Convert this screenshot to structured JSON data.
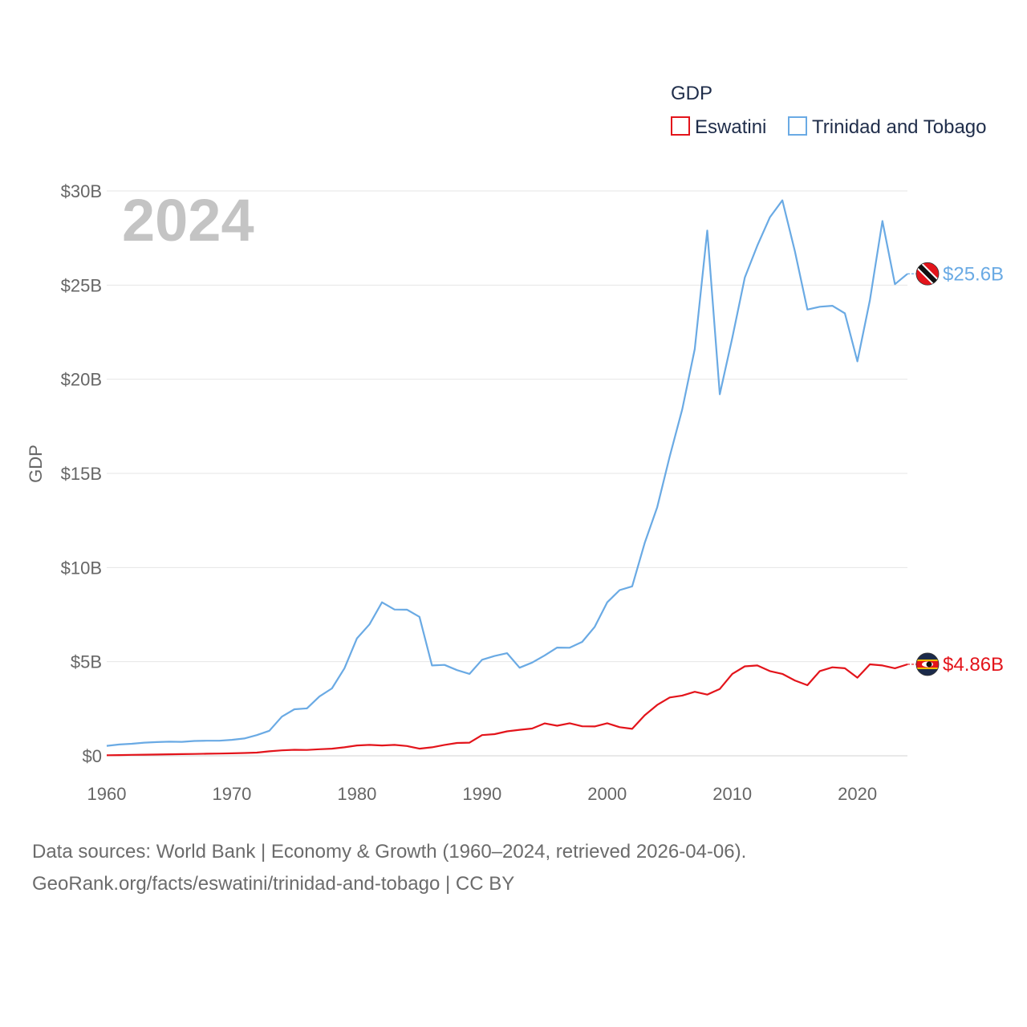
{
  "chart_data": {
    "type": "line",
    "title": "GDP",
    "ylabel": "GDP",
    "xlabel": "",
    "year_watermark": "2024",
    "xlim": [
      1960,
      2024
    ],
    "ylim": [
      0,
      30
    ],
    "x_ticks": [
      1960,
      1970,
      1980,
      1990,
      2000,
      2010,
      2020
    ],
    "y_ticks": [
      {
        "value": 0,
        "label": "$0"
      },
      {
        "value": 5,
        "label": "$5B"
      },
      {
        "value": 10,
        "label": "$10B"
      },
      {
        "value": 15,
        "label": "$15B"
      },
      {
        "value": 20,
        "label": "$20B"
      },
      {
        "value": 25,
        "label": "$25B"
      },
      {
        "value": 30,
        "label": "$30B"
      }
    ],
    "x": [
      1960,
      1961,
      1962,
      1963,
      1964,
      1965,
      1966,
      1967,
      1968,
      1969,
      1970,
      1971,
      1972,
      1973,
      1974,
      1975,
      1976,
      1977,
      1978,
      1979,
      1980,
      1981,
      1982,
      1983,
      1984,
      1985,
      1986,
      1987,
      1988,
      1989,
      1990,
      1991,
      1992,
      1993,
      1994,
      1995,
      1996,
      1997,
      1998,
      1999,
      2000,
      2001,
      2002,
      2003,
      2004,
      2005,
      2006,
      2007,
      2008,
      2009,
      2010,
      2011,
      2012,
      2013,
      2014,
      2015,
      2016,
      2017,
      2018,
      2019,
      2020,
      2021,
      2022,
      2023,
      2024
    ],
    "series": [
      {
        "name": "Eswatini",
        "color": "#e3141b",
        "end_label": "$4.86B",
        "flag": "eswatini",
        "values": [
          0.03,
          0.04,
          0.05,
          0.06,
          0.07,
          0.08,
          0.09,
          0.1,
          0.11,
          0.12,
          0.13,
          0.15,
          0.17,
          0.24,
          0.29,
          0.32,
          0.31,
          0.35,
          0.38,
          0.45,
          0.55,
          0.58,
          0.55,
          0.58,
          0.52,
          0.38,
          0.45,
          0.58,
          0.68,
          0.7,
          1.1,
          1.15,
          1.3,
          1.38,
          1.45,
          1.72,
          1.6,
          1.73,
          1.57,
          1.56,
          1.73,
          1.52,
          1.43,
          2.15,
          2.7,
          3.1,
          3.2,
          3.4,
          3.25,
          3.55,
          4.35,
          4.75,
          4.8,
          4.5,
          4.35,
          4.0,
          3.75,
          4.5,
          4.7,
          4.65,
          4.15,
          4.86,
          4.8,
          4.65,
          4.86
        ]
      },
      {
        "name": "Trinidad and Tobago",
        "color": "#6aaae4",
        "end_label": "$25.6B",
        "flag": "trinidad",
        "values": [
          0.53,
          0.6,
          0.64,
          0.7,
          0.73,
          0.75,
          0.74,
          0.79,
          0.8,
          0.8,
          0.85,
          0.92,
          1.1,
          1.33,
          2.08,
          2.47,
          2.52,
          3.15,
          3.58,
          4.65,
          6.24,
          6.98,
          8.15,
          7.77,
          7.76,
          7.38,
          4.8,
          4.83,
          4.55,
          4.35,
          5.1,
          5.3,
          5.45,
          4.68,
          4.95,
          5.33,
          5.75,
          5.74,
          6.05,
          6.85,
          8.15,
          8.8,
          9.0,
          11.3,
          13.2,
          15.9,
          18.4,
          21.6,
          27.9,
          19.2,
          22.2,
          25.4,
          27.1,
          28.6,
          29.5,
          26.8,
          23.7,
          23.85,
          23.9,
          23.5,
          20.95,
          24.2,
          28.4,
          25.05,
          25.6
        ]
      }
    ]
  },
  "legend": {
    "title": "GDP",
    "items": [
      "Eswatini",
      "Trinidad and Tobago"
    ]
  },
  "source": {
    "line1": "Data sources: World Bank | Economy & Growth (1960–2024, retrieved 2026-04-06).",
    "line2": "GeoRank.org/facts/eswatini/trinidad-and-tobago | CC BY"
  }
}
